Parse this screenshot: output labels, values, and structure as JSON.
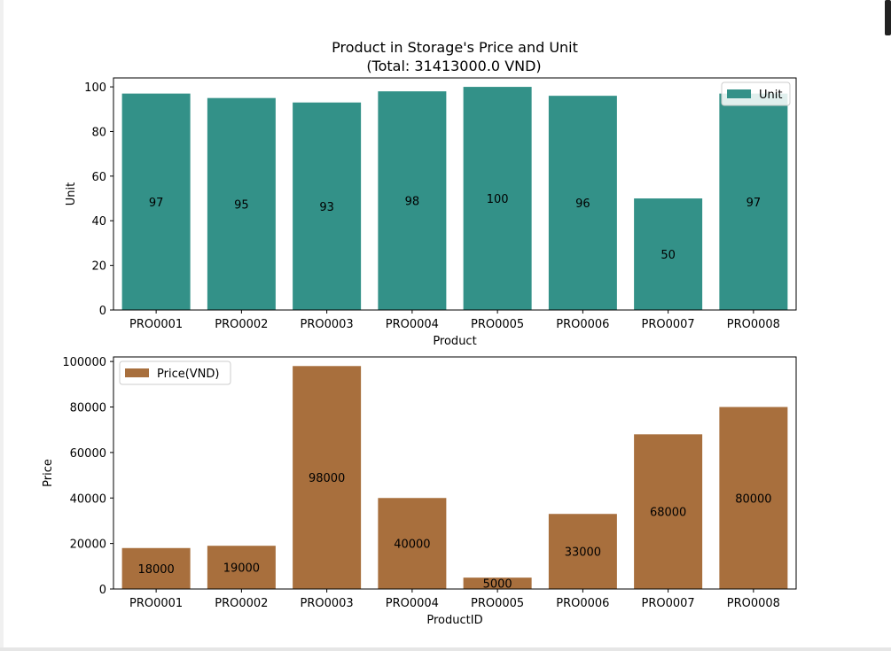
{
  "window": {
    "title_line1": "Product in Storage's Price and Unit",
    "title_line2": "(Total: 31413000.0 VND)"
  },
  "chart_data": [
    {
      "type": "bar",
      "title": "Product in Storage's Price and Unit (Total: 31413000.0 VND)",
      "categories": [
        "PRO0001",
        "PRO0002",
        "PRO0003",
        "PRO0004",
        "PRO0005",
        "PRO0006",
        "PRO0007",
        "PRO0008"
      ],
      "series": [
        {
          "name": "Unit",
          "values": [
            97,
            95,
            93,
            98,
            100,
            96,
            50,
            97
          ],
          "color": "#339188"
        }
      ],
      "xlabel": "Product",
      "ylabel": "Unit",
      "ylim": [
        0,
        104
      ],
      "yticks": [
        0,
        20,
        40,
        60,
        80,
        100
      ],
      "legend_position": "top-right",
      "grid": false
    },
    {
      "type": "bar",
      "categories": [
        "PRO0001",
        "PRO0002",
        "PRO0003",
        "PRO0004",
        "PRO0005",
        "PRO0006",
        "PRO0007",
        "PRO0008"
      ],
      "series": [
        {
          "name": "Price(VND)",
          "values": [
            18000,
            19000,
            98000,
            40000,
            5000,
            33000,
            68000,
            80000
          ],
          "color": "#a86f3d"
        }
      ],
      "xlabel": "ProductID",
      "ylabel": "Price",
      "ylim": [
        0,
        102000
      ],
      "yticks": [
        0,
        20000,
        40000,
        60000,
        80000,
        100000
      ],
      "legend_position": "top-left",
      "grid": false
    }
  ]
}
